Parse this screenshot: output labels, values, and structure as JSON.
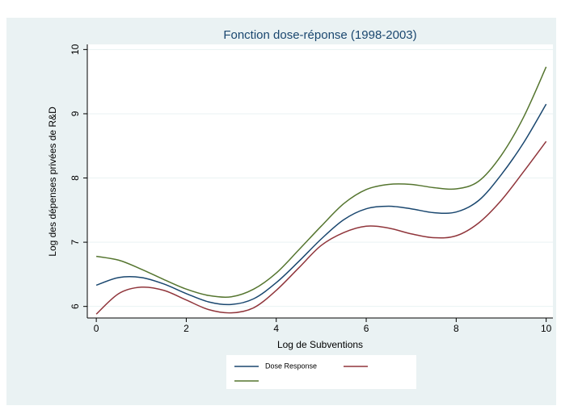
{
  "chart_data": {
    "type": "line",
    "title": "Fonction dose-réponse (1998-2003)",
    "x_label": "Log de Subventions",
    "y_label": "Log des dépenses privées de R&D",
    "x": [
      0,
      0.5,
      1,
      1.5,
      2,
      2.5,
      3,
      3.5,
      4,
      4.5,
      5,
      5.5,
      6,
      6.5,
      7,
      7.5,
      8,
      8.5,
      9,
      9.5,
      10
    ],
    "series": [
      {
        "name": "Dose Response",
        "color": "#1a476f",
        "values": [
          6.33,
          6.45,
          6.45,
          6.35,
          6.2,
          6.07,
          6.03,
          6.12,
          6.37,
          6.7,
          7.05,
          7.35,
          7.52,
          7.56,
          7.52,
          7.46,
          7.47,
          7.65,
          8.05,
          8.55,
          9.15
        ]
      },
      {
        "color": "#90353b",
        "values": [
          5.88,
          6.2,
          6.3,
          6.25,
          6.1,
          5.95,
          5.9,
          5.98,
          6.25,
          6.6,
          6.95,
          7.15,
          7.25,
          7.22,
          7.13,
          7.07,
          7.1,
          7.3,
          7.65,
          8.1,
          8.57
        ]
      },
      {
        "color": "#55752f",
        "values": [
          6.78,
          6.72,
          6.58,
          6.42,
          6.27,
          6.17,
          6.15,
          6.27,
          6.52,
          6.88,
          7.25,
          7.6,
          7.82,
          7.9,
          7.9,
          7.85,
          7.83,
          7.95,
          8.35,
          8.95,
          9.73
        ]
      }
    ],
    "xlim": [
      -0.2,
      10.15
    ],
    "ylim": [
      5.82,
      10.08
    ],
    "xticks": [
      0,
      2,
      4,
      6,
      8,
      10
    ],
    "yticks": [
      6,
      7,
      8,
      9,
      10
    ],
    "grid": true
  }
}
